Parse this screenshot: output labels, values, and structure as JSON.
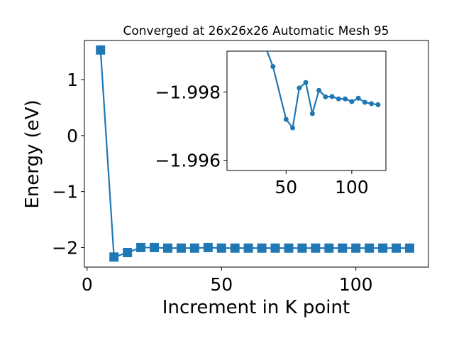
{
  "chart_data": [
    {
      "type": "line",
      "title": "Converged at 26x26x26 Automatic Mesh 95",
      "xlabel": "Increment in K point",
      "ylabel": "Energy (eV)",
      "xlim": [
        -1,
        127
      ],
      "ylim": [
        -2.35,
        1.7
      ],
      "xticks": [
        0,
        50,
        100
      ],
      "xtick_labels": [
        "0",
        "50",
        "100"
      ],
      "yticks": [
        -2,
        -1,
        0,
        1
      ],
      "ytick_labels": [
        "−2",
        "−1",
        "0",
        "1"
      ],
      "grid": false,
      "marker": "square",
      "color": "#1f77b4",
      "x": [
        5,
        10,
        15,
        20,
        25,
        30,
        35,
        40,
        45,
        50,
        55,
        60,
        65,
        70,
        75,
        80,
        85,
        90,
        95,
        100,
        105,
        110,
        115,
        120
      ],
      "y": [
        1.53,
        -2.17,
        -2.09,
        -2.0,
        -2.0,
        -2.01,
        -2.01,
        -2.01,
        -2.0,
        -2.01,
        -2.01,
        -2.01,
        -2.01,
        -2.01,
        -2.01,
        -2.01,
        -2.01,
        -2.01,
        -2.01,
        -2.01,
        -2.01,
        -2.01,
        -2.01,
        -2.01
      ]
    },
    {
      "type": "line",
      "title": "",
      "xlabel": "",
      "ylabel": "",
      "xlim": [
        5,
        126
      ],
      "ylim": [
        -1.9957,
        -1.9992
      ],
      "xticks": [
        50,
        100
      ],
      "xtick_labels": [
        "50",
        "100"
      ],
      "yticks": [
        -1.998,
        -1.996
      ],
      "ytick_labels": [
        "−1.998",
        "−1.996"
      ],
      "grid": false,
      "marker": "circle",
      "color": "#1f77b4",
      "x": [
        35,
        40,
        50,
        55,
        60,
        65,
        70,
        75,
        80,
        85,
        90,
        95,
        100,
        105,
        110,
        115,
        120
      ],
      "y": [
        -1.99925,
        -1.99875,
        -1.9972,
        -1.99695,
        -1.99812,
        -1.99828,
        -1.99737,
        -1.99805,
        -1.99786,
        -1.99787,
        -1.9978,
        -1.9978,
        -1.99772,
        -1.99782,
        -1.9977,
        -1.99766,
        -1.99763
      ]
    }
  ]
}
